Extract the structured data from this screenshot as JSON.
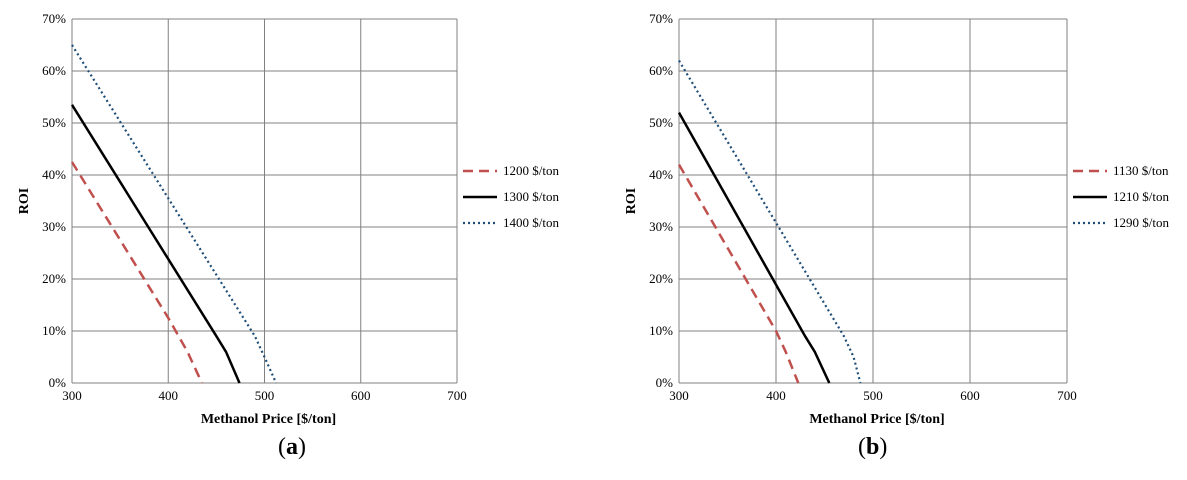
{
  "chart_data": [
    {
      "type": "line",
      "panel_label": "a",
      "xlabel": "Methanol Price [$/ton]",
      "ylabel": "ROI",
      "xlim": [
        300,
        700
      ],
      "ylim": [
        0,
        70
      ],
      "x_ticks": [
        "300",
        "400",
        "500",
        "600",
        "700"
      ],
      "y_ticks": [
        "0%",
        "10%",
        "20%",
        "30%",
        "40%",
        "50%",
        "60%",
        "70%"
      ],
      "grid": true,
      "legend_position": "right",
      "series": [
        {
          "name": "1200 $/ton",
          "style": "dashed",
          "color": "#c0504d",
          "x": [
            300,
            400,
            420,
            435
          ],
          "y": [
            42.5,
            12.5,
            6,
            0
          ]
        },
        {
          "name": "1300 $/ton",
          "style": "solid",
          "color": "#000000",
          "x": [
            300,
            450,
            460,
            474
          ],
          "y": [
            53.5,
            9,
            6,
            0
          ]
        },
        {
          "name": "1400 $/ton",
          "style": "dotted",
          "color": "#1f4e79",
          "x": [
            300,
            490,
            500,
            512
          ],
          "y": [
            65,
            9,
            5,
            0
          ]
        }
      ]
    },
    {
      "type": "line",
      "panel_label": "b",
      "xlabel": "Methanol Price [$/ton]",
      "ylabel": "ROI",
      "xlim": [
        300,
        700
      ],
      "ylim": [
        0,
        70
      ],
      "x_ticks": [
        "300",
        "400",
        "500",
        "600",
        "700"
      ],
      "y_ticks": [
        "0%",
        "10%",
        "20%",
        "30%",
        "40%",
        "50%",
        "60%",
        "70%"
      ],
      "grid": true,
      "legend_position": "right",
      "series": [
        {
          "name": "1130 $/ton",
          "style": "dashed",
          "color": "#c0504d",
          "x": [
            300,
            400,
            410,
            423
          ],
          "y": [
            42,
            10,
            6,
            0
          ]
        },
        {
          "name": "1210 $/ton",
          "style": "solid",
          "color": "#000000",
          "x": [
            300,
            430,
            440,
            455
          ],
          "y": [
            52,
            9,
            6,
            0
          ]
        },
        {
          "name": "1290 $/ton",
          "style": "dotted",
          "color": "#1f4e79",
          "x": [
            300,
            470,
            480,
            487
          ],
          "y": [
            62,
            9,
            5,
            0
          ]
        }
      ]
    }
  ]
}
